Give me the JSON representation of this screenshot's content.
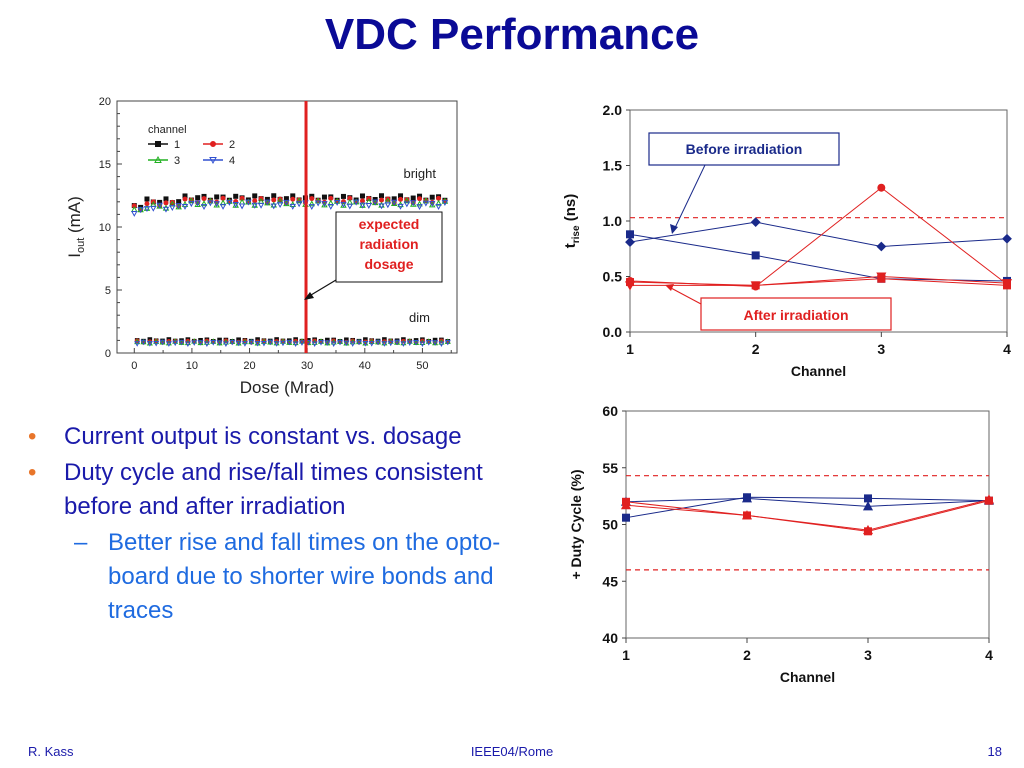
{
  "slide": {
    "title": "VDC Performance",
    "bullets": [
      {
        "text": "Current output is constant vs. dosage"
      },
      {
        "text": "Duty cycle and rise/fall times consistent before and after irradiation"
      }
    ],
    "sub_bullets": [
      {
        "text": "Better rise and fall times on the opto-board due to shorter wire bonds and traces"
      }
    ],
    "footer": {
      "left": "R. Kass",
      "center": "IEEE04/Rome",
      "right": "18"
    },
    "colors": {
      "title": "#0a0a96",
      "bullet_marker": "#e8752a",
      "sub_bullet": "#1f6be0",
      "before": "#1a2a8a",
      "after": "#e02020"
    }
  },
  "chart_data": [
    {
      "type": "scatter",
      "xlabel": "Dose (Mrad)",
      "ylabel_main": "I",
      "ylabel_sub": "out",
      "ylabel_unit": " (mA)",
      "xlim": [
        -3,
        56
      ],
      "ylim": [
        0,
        20
      ],
      "xticks": [
        0,
        10,
        20,
        30,
        40,
        50
      ],
      "yticks": [
        0,
        5,
        10,
        15,
        20
      ],
      "legend_title": "channel",
      "legend_position": "top-left",
      "series": [
        {
          "name": "1",
          "color": "#111111",
          "marker": "square",
          "bright_level": 12.3,
          "dim_level": 1.0
        },
        {
          "name": "2",
          "color": "#e02020",
          "marker": "circle",
          "bright_level": 12.1,
          "dim_level": 0.9
        },
        {
          "name": "3",
          "color": "#20b020",
          "marker": "triangle-up",
          "bright_level": 11.9,
          "dim_level": 0.85
        },
        {
          "name": "4",
          "color": "#3050d0",
          "marker": "triangle-down",
          "bright_level": 11.8,
          "dim_level": 0.8
        }
      ],
      "bands": [
        {
          "label": "bright",
          "y": 12.1
        },
        {
          "label": "dim",
          "y": 0.9
        }
      ],
      "marker_line": {
        "x": 29.8,
        "color": "#e02020"
      },
      "annotation": {
        "text": [
          "expected",
          "radiation",
          "dosage"
        ],
        "color": "#e02020"
      }
    },
    {
      "type": "line",
      "xlabel": "Channel",
      "ylabel_main": "t",
      "ylabel_sub": "rise",
      "ylabel_unit": " (ns)",
      "categories": [
        "1",
        "2",
        "3",
        "4"
      ],
      "ylim": [
        0,
        2.0
      ],
      "yticks": [
        "0.0",
        "0.5",
        "1.0",
        "1.5",
        "2.0"
      ],
      "ref_lines": [
        1.03
      ],
      "series": [
        {
          "group": "before",
          "marker": "diamond",
          "values": [
            0.81,
            0.99,
            0.77,
            0.84
          ]
        },
        {
          "group": "before",
          "marker": "square",
          "values": [
            0.88,
            0.69,
            0.48,
            0.46
          ]
        },
        {
          "group": "after",
          "marker": "circle",
          "values": [
            0.46,
            0.41,
            1.3,
            0.43
          ]
        },
        {
          "group": "after",
          "marker": "square",
          "values": [
            0.45,
            0.42,
            0.48,
            0.42
          ]
        },
        {
          "group": "after",
          "marker": "triangle-down",
          "values": [
            0.42,
            0.42,
            0.5,
            0.44
          ]
        }
      ],
      "legend": {
        "before": "Before irradiation",
        "after": "After irradiation"
      }
    },
    {
      "type": "line",
      "xlabel": "Channel",
      "ylabel": "+ Duty Cycle (%)",
      "categories": [
        "1",
        "2",
        "3",
        "4"
      ],
      "ylim": [
        40,
        60
      ],
      "yticks": [
        "40",
        "45",
        "50",
        "55",
        "60"
      ],
      "ref_lines": [
        54.3,
        46.0
      ],
      "series": [
        {
          "group": "before",
          "marker": "square",
          "values": [
            50.6,
            52.4,
            52.3,
            52.1
          ]
        },
        {
          "group": "before",
          "marker": "triangle-up",
          "values": [
            52.0,
            52.3,
            51.6,
            52.1
          ]
        },
        {
          "group": "after",
          "marker": "square",
          "values": [
            52.0,
            50.8,
            49.4,
            52.1
          ]
        },
        {
          "group": "after",
          "marker": "triangle-up",
          "values": [
            51.7,
            50.8,
            49.5,
            52.2
          ]
        }
      ]
    }
  ]
}
